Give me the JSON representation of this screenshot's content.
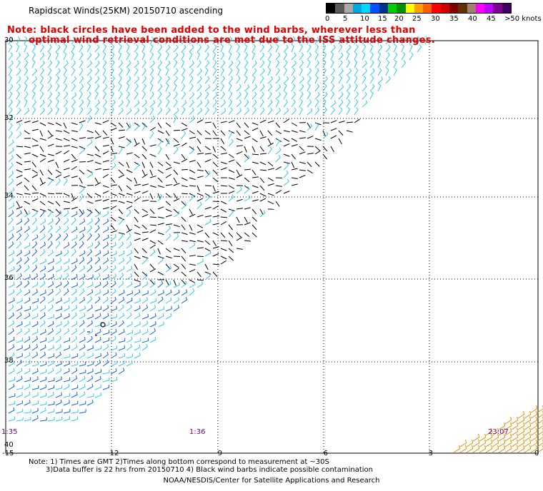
{
  "title": "Rapidscat Winds(25KM) 20150710 ascending",
  "note": {
    "line1": "Note: black circles have been added to the wind barbs, wherever less than",
    "line2": "optimal wind retrieval conditions are met due to the ISS attitude changes."
  },
  "legend": {
    "colors": [
      "#000000",
      "#5a5a5a",
      "#aaaaaa",
      "#00a8e0",
      "#00d8ff",
      "#0050ff",
      "#003090",
      "#00d000",
      "#009000",
      "#ffff00",
      "#ffa000",
      "#ff6000",
      "#ff0000",
      "#d00000",
      "#800000",
      "#603000",
      "#a08070",
      "#ff00ff",
      "#c000ff",
      "#800090",
      "#400060"
    ],
    "labels": [
      {
        "text": "0",
        "offset": 7
      },
      {
        "text": "5",
        "offset": 32
      },
      {
        "text": "10",
        "offset": 56
      },
      {
        "text": "15",
        "offset": 81
      },
      {
        "text": "20",
        "offset": 104
      },
      {
        "text": "25",
        "offset": 129
      },
      {
        "text": "30",
        "offset": 155
      },
      {
        "text": "35",
        "offset": 181
      },
      {
        "text": "40",
        "offset": 207
      },
      {
        "text": "45",
        "offset": 233
      },
      {
        "text": ">50 knots",
        "offset": 258
      }
    ]
  },
  "axes": {
    "lat_labels": [
      "30",
      "32",
      "34",
      "36",
      "38",
      "40"
    ],
    "lon_labels": [
      "-15",
      "-12",
      "-9",
      "-6",
      "-3",
      "0"
    ]
  },
  "times": [
    "1:35",
    "1:36",
    "23:07"
  ],
  "bottom_note": {
    "line1": "Note: 1) Times are GMT 2)Times along bottom correspond to measurement at ~30S",
    "line2": "3)Data buffer is 22 hrs from 20150710 4) Black wind barbs indicate possible contamination"
  },
  "credit": "NOAA/NESDIS/Center for Satellite Applications and Research",
  "barb_colors": {
    "light": "#30c8f0",
    "medium": "#1060e8",
    "black": "#000000",
    "orange": "#e09000"
  }
}
